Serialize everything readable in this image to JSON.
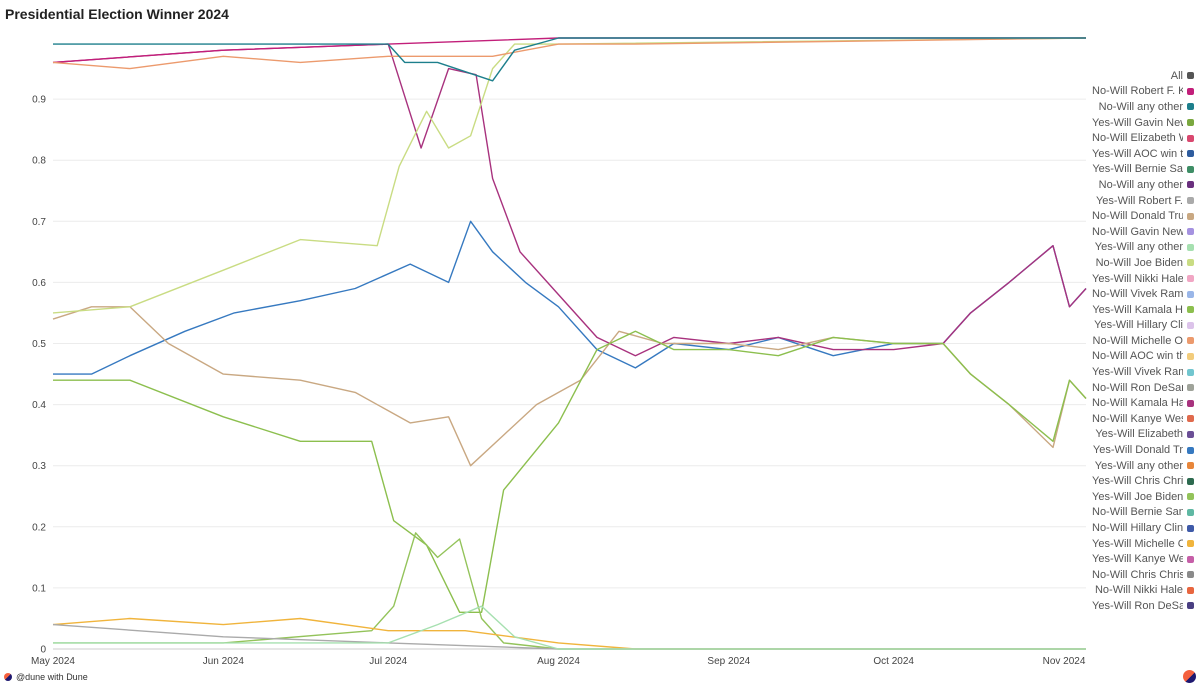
{
  "title": "Presidential Election Winner 2024",
  "footer": {
    "handle": "@dune with",
    "brand": "Dune"
  },
  "chart_data": {
    "type": "line",
    "title": "Presidential Election Winner 2024",
    "xlabel": "",
    "ylabel": "",
    "x_ticks": [
      "May 2024",
      "Jun 2024",
      "Jul 2024",
      "Aug 2024",
      "Sep 2024",
      "Oct 2024",
      "Nov 2024"
    ],
    "y_ticks": [
      "0",
      "0.1",
      "0.2",
      "0.3",
      "0.4",
      "0.5",
      "0.6",
      "0.7",
      "0.8",
      "0.9"
    ],
    "ylim": [
      0,
      1
    ],
    "xlim": [
      "2024-05-01",
      "2024-11-05"
    ],
    "grid": "horizontal",
    "legend_position": "right",
    "legend": [
      {
        "label": "All",
        "color": "#555555"
      },
      {
        "label": "No-Will Robert F. K",
        "color": "#c21f7a"
      },
      {
        "label": "No-Will any other",
        "color": "#1d7f8c"
      },
      {
        "label": "Yes-Will Gavin New",
        "color": "#7aa83f"
      },
      {
        "label": "No-Will Elizabeth W",
        "color": "#d9486f"
      },
      {
        "label": "Yes-Will AOC win t",
        "color": "#2e5c9e"
      },
      {
        "label": "Yes-Will Bernie Sa",
        "color": "#3e8e66"
      },
      {
        "label": "No-Will any other",
        "color": "#6a2f7e"
      },
      {
        "label": "Yes-Will Robert F.",
        "color": "#aaaaaa"
      },
      {
        "label": "No-Will Donald Tru",
        "color": "#c9a882"
      },
      {
        "label": "No-Will Gavin New",
        "color": "#a592e0"
      },
      {
        "label": "Yes-Will any other",
        "color": "#a6e0b0"
      },
      {
        "label": "No-Will Joe Biden",
        "color": "#c9dc83"
      },
      {
        "label": "Yes-Will Nikki Hale",
        "color": "#f1a6c4"
      },
      {
        "label": "No-Will Vivek Ram",
        "color": "#9ab6e8"
      },
      {
        "label": "Yes-Will Kamala H",
        "color": "#8cbf4e"
      },
      {
        "label": "Yes-Will Hillary Cli",
        "color": "#dcc3ea"
      },
      {
        "label": "No-Will Michelle O",
        "color": "#ec9a6d"
      },
      {
        "label": "No-Will AOC win th",
        "color": "#f2cc7c"
      },
      {
        "label": "Yes-Will Vivek Ram",
        "color": "#72c6cf"
      },
      {
        "label": "No-Will Ron DeSan",
        "color": "#9fa39a"
      },
      {
        "label": "No-Will Kamala Ha",
        "color": "#a8327e"
      },
      {
        "label": "No-Will Kanye Wes",
        "color": "#e06a4d"
      },
      {
        "label": "Yes-Will Elizabeth",
        "color": "#6b4f96"
      },
      {
        "label": "Yes-Will Donald Tr",
        "color": "#3679c0"
      },
      {
        "label": "Yes-Will any other",
        "color": "#e8863a"
      },
      {
        "label": "Yes-Will Chris Chri",
        "color": "#2d6a4f"
      },
      {
        "label": "Yes-Will Joe Biden",
        "color": "#93c35a"
      },
      {
        "label": "No-Will Bernie San",
        "color": "#5fb8a3"
      },
      {
        "label": "No-Will Hillary Clin",
        "color": "#3f5aa8"
      },
      {
        "label": "Yes-Will Michelle O",
        "color": "#f0b43c"
      },
      {
        "label": "Yes-Will Kanye We",
        "color": "#c65fa8"
      },
      {
        "label": "No-Will Chris Chris",
        "color": "#8a8a8a"
      },
      {
        "label": "No-Will Nikki Hale",
        "color": "#e8663f"
      },
      {
        "label": "Yes-Will Ron DeSa",
        "color": "#4a3f82"
      }
    ],
    "series": [
      {
        "name": "Yes-Will Donald Tr",
        "color": "#3679c0",
        "points": [
          [
            "2024-05-01",
            0.45
          ],
          [
            "2024-05-08",
            0.45
          ],
          [
            "2024-05-15",
            0.48
          ],
          [
            "2024-05-25",
            0.52
          ],
          [
            "2024-06-03",
            0.55
          ],
          [
            "2024-06-15",
            0.57
          ],
          [
            "2024-06-25",
            0.59
          ],
          [
            "2024-07-05",
            0.63
          ],
          [
            "2024-07-12",
            0.6
          ],
          [
            "2024-07-16",
            0.7
          ],
          [
            "2024-07-20",
            0.65
          ],
          [
            "2024-07-26",
            0.6
          ],
          [
            "2024-08-01",
            0.56
          ],
          [
            "2024-08-08",
            0.49
          ],
          [
            "2024-08-15",
            0.46
          ],
          [
            "2024-08-22",
            0.5
          ],
          [
            "2024-09-01",
            0.49
          ],
          [
            "2024-09-10",
            0.51
          ],
          [
            "2024-09-20",
            0.48
          ],
          [
            "2024-10-01",
            0.5
          ],
          [
            "2024-10-10",
            0.5
          ],
          [
            "2024-10-15",
            0.55
          ],
          [
            "2024-10-22",
            0.6
          ],
          [
            "2024-10-30",
            0.66
          ],
          [
            "2024-11-02",
            0.56
          ],
          [
            "2024-11-05",
            0.59
          ]
        ]
      },
      {
        "name": "No-Will Kamala Ha",
        "color": "#a8327e",
        "points": [
          [
            "2024-05-01",
            0.96
          ],
          [
            "2024-06-01",
            0.98
          ],
          [
            "2024-07-01",
            0.99
          ],
          [
            "2024-07-07",
            0.82
          ],
          [
            "2024-07-12",
            0.95
          ],
          [
            "2024-07-17",
            0.94
          ],
          [
            "2024-07-20",
            0.77
          ],
          [
            "2024-07-25",
            0.65
          ],
          [
            "2024-08-01",
            0.58
          ],
          [
            "2024-08-08",
            0.51
          ],
          [
            "2024-08-15",
            0.48
          ],
          [
            "2024-08-22",
            0.51
          ],
          [
            "2024-09-01",
            0.5
          ],
          [
            "2024-09-10",
            0.51
          ],
          [
            "2024-09-20",
            0.49
          ],
          [
            "2024-10-01",
            0.49
          ],
          [
            "2024-10-10",
            0.5
          ],
          [
            "2024-10-15",
            0.55
          ],
          [
            "2024-10-22",
            0.6
          ],
          [
            "2024-10-30",
            0.66
          ],
          [
            "2024-11-02",
            0.56
          ],
          [
            "2024-11-05",
            0.59
          ]
        ]
      },
      {
        "name": "No-Will Donald Tru",
        "color": "#c9a882",
        "points": [
          [
            "2024-05-01",
            0.54
          ],
          [
            "2024-05-08",
            0.56
          ],
          [
            "2024-05-15",
            0.56
          ],
          [
            "2024-05-22",
            0.5
          ],
          [
            "2024-06-01",
            0.45
          ],
          [
            "2024-06-15",
            0.44
          ],
          [
            "2024-06-25",
            0.42
          ],
          [
            "2024-07-05",
            0.37
          ],
          [
            "2024-07-12",
            0.38
          ],
          [
            "2024-07-16",
            0.3
          ],
          [
            "2024-07-22",
            0.35
          ],
          [
            "2024-07-28",
            0.4
          ],
          [
            "2024-08-05",
            0.44
          ],
          [
            "2024-08-12",
            0.52
          ],
          [
            "2024-08-20",
            0.5
          ],
          [
            "2024-09-01",
            0.5
          ],
          [
            "2024-09-10",
            0.49
          ],
          [
            "2024-09-20",
            0.51
          ],
          [
            "2024-10-01",
            0.5
          ],
          [
            "2024-10-10",
            0.5
          ],
          [
            "2024-10-15",
            0.45
          ],
          [
            "2024-10-22",
            0.4
          ],
          [
            "2024-10-30",
            0.33
          ],
          [
            "2024-11-02",
            0.44
          ],
          [
            "2024-11-05",
            0.41
          ]
        ]
      },
      {
        "name": "Yes-Will Kamala H",
        "color": "#8cbf4e",
        "points": [
          [
            "2024-05-01",
            0.44
          ],
          [
            "2024-05-15",
            0.44
          ],
          [
            "2024-06-01",
            0.38
          ],
          [
            "2024-06-15",
            0.34
          ],
          [
            "2024-06-28",
            0.34
          ],
          [
            "2024-07-02",
            0.21
          ],
          [
            "2024-07-08",
            0.17
          ],
          [
            "2024-07-14",
            0.06
          ],
          [
            "2024-07-18",
            0.06
          ],
          [
            "2024-07-22",
            0.26
          ],
          [
            "2024-08-01",
            0.37
          ],
          [
            "2024-08-08",
            0.49
          ],
          [
            "2024-08-15",
            0.52
          ],
          [
            "2024-08-22",
            0.49
          ],
          [
            "2024-09-01",
            0.49
          ],
          [
            "2024-09-10",
            0.48
          ],
          [
            "2024-09-20",
            0.51
          ],
          [
            "2024-10-01",
            0.5
          ],
          [
            "2024-10-10",
            0.5
          ],
          [
            "2024-10-15",
            0.45
          ],
          [
            "2024-10-22",
            0.4
          ],
          [
            "2024-10-30",
            0.34
          ],
          [
            "2024-11-02",
            0.44
          ],
          [
            "2024-11-05",
            0.41
          ]
        ]
      },
      {
        "name": "No-Will Joe Biden",
        "color": "#c9dc83",
        "points": [
          [
            "2024-05-01",
            0.55
          ],
          [
            "2024-05-15",
            0.56
          ],
          [
            "2024-06-01",
            0.62
          ],
          [
            "2024-06-15",
            0.67
          ],
          [
            "2024-06-29",
            0.66
          ],
          [
            "2024-07-03",
            0.79
          ],
          [
            "2024-07-08",
            0.88
          ],
          [
            "2024-07-12",
            0.82
          ],
          [
            "2024-07-16",
            0.84
          ],
          [
            "2024-07-20",
            0.95
          ],
          [
            "2024-07-24",
            0.99
          ],
          [
            "2024-08-01",
            0.99
          ],
          [
            "2024-11-05",
            1.0
          ]
        ]
      },
      {
        "name": "Yes-Will Joe Biden",
        "color": "#93c35a",
        "points": [
          [
            "2024-05-01",
            0.01
          ],
          [
            "2024-06-01",
            0.01
          ],
          [
            "2024-06-28",
            0.03
          ],
          [
            "2024-07-02",
            0.07
          ],
          [
            "2024-07-06",
            0.19
          ],
          [
            "2024-07-10",
            0.15
          ],
          [
            "2024-07-14",
            0.18
          ],
          [
            "2024-07-18",
            0.05
          ],
          [
            "2024-07-22",
            0.01
          ],
          [
            "2024-08-01",
            0.0
          ],
          [
            "2024-11-05",
            0.0
          ]
        ]
      },
      {
        "name": "No-Will Robert F. K",
        "color": "#c21f7a",
        "points": [
          [
            "2024-05-01",
            0.96
          ],
          [
            "2024-06-01",
            0.98
          ],
          [
            "2024-07-01",
            0.99
          ],
          [
            "2024-08-01",
            1.0
          ],
          [
            "2024-11-05",
            1.0
          ]
        ]
      },
      {
        "name": "No-Will Michelle O",
        "color": "#ec9a6d",
        "points": [
          [
            "2024-05-01",
            0.96
          ],
          [
            "2024-05-15",
            0.95
          ],
          [
            "2024-06-01",
            0.97
          ],
          [
            "2024-06-15",
            0.96
          ],
          [
            "2024-07-01",
            0.97
          ],
          [
            "2024-07-20",
            0.97
          ],
          [
            "2024-08-01",
            0.99
          ],
          [
            "2024-08-15",
            0.99
          ],
          [
            "2024-11-05",
            1.0
          ]
        ]
      },
      {
        "name": "No-Will any other",
        "color": "#1d7f8c",
        "points": [
          [
            "2024-05-01",
            0.99
          ],
          [
            "2024-07-01",
            0.99
          ],
          [
            "2024-07-04",
            0.96
          ],
          [
            "2024-07-10",
            0.96
          ],
          [
            "2024-07-20",
            0.93
          ],
          [
            "2024-07-24",
            0.98
          ],
          [
            "2024-08-01",
            1.0
          ],
          [
            "2024-11-05",
            1.0
          ]
        ]
      },
      {
        "name": "Yes-Will Michelle O",
        "color": "#f0b43c",
        "points": [
          [
            "2024-05-01",
            0.04
          ],
          [
            "2024-05-15",
            0.05
          ],
          [
            "2024-06-01",
            0.04
          ],
          [
            "2024-06-15",
            0.05
          ],
          [
            "2024-07-01",
            0.03
          ],
          [
            "2024-07-15",
            0.03
          ],
          [
            "2024-08-01",
            0.01
          ],
          [
            "2024-08-15",
            0.0
          ],
          [
            "2024-11-05",
            0.0
          ]
        ]
      },
      {
        "name": "Yes-Will Robert F.",
        "color": "#aaaaaa",
        "points": [
          [
            "2024-05-01",
            0.04
          ],
          [
            "2024-06-01",
            0.02
          ],
          [
            "2024-07-01",
            0.01
          ],
          [
            "2024-08-01",
            0.0
          ],
          [
            "2024-11-05",
            0.0
          ]
        ]
      },
      {
        "name": "Yes-Will any other",
        "color": "#a6e0b0",
        "points": [
          [
            "2024-05-01",
            0.01
          ],
          [
            "2024-07-01",
            0.01
          ],
          [
            "2024-07-10",
            0.04
          ],
          [
            "2024-07-18",
            0.07
          ],
          [
            "2024-07-24",
            0.02
          ],
          [
            "2024-08-01",
            0.0
          ],
          [
            "2024-11-05",
            0.0
          ]
        ]
      }
    ]
  }
}
